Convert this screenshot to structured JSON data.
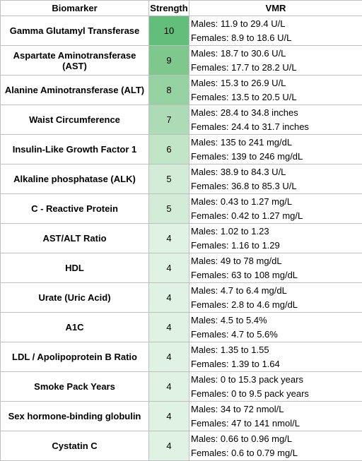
{
  "table": {
    "headers": [
      "Biomarker",
      "Strength",
      "VMR"
    ],
    "rows": [
      {
        "biomarker": "Gamma Glutamyl Transferase",
        "strength": "10",
        "males": "Males: 11.9 to 29.4 U/L",
        "females": "Females: 8.9 to 18.6 U/L",
        "color": "#63be7b"
      },
      {
        "biomarker": "Aspartate Aminotransferase (AST)",
        "strength": "9",
        "males": "Males: 18.7 to 30.6 U/L",
        "females": "Females: 17.7 to 28.2 U/L",
        "color": "#7ec88d"
      },
      {
        "biomarker": "Alanine Aminotransferase (ALT)",
        "strength": "8",
        "males": "Males: 15.3 to 26.9 U/L",
        "females": "Females: 13.5 to 20.5 U/L",
        "color": "#96d2a1"
      },
      {
        "biomarker": "Waist Circumference",
        "strength": "7",
        "males": "Males: 28.4 to 34.8 inches",
        "females": "Females: 24.4 to 31.7 inches",
        "color": "#addbb5"
      },
      {
        "biomarker": "Insulin-Like Growth Factor 1",
        "strength": "6",
        "males": "Males: 135 to 241 mg/dL",
        "females": "Females: 139 to 246 mg/dL",
        "color": "#c2e5c8"
      },
      {
        "biomarker": "Alkaline phosphatase (ALK)",
        "strength": "5",
        "males": "Males: 38.9 to 84.3 U/L",
        "females": "Females: 36.8 to 85.3 U/L",
        "color": "#d3ecd7"
      },
      {
        "biomarker": "C - Reactive Protein",
        "strength": "5",
        "males": "Males: 0.43 to 1.27 mg/L",
        "females": "Females: 0.42 to 1.27 mg/L",
        "color": "#d3ecd7"
      },
      {
        "biomarker": "AST/ALT Ratio",
        "strength": "4",
        "males": "Males: 1.02 to 1.23",
        "females": "Females: 1.16 to 1.29",
        "color": "#e0f2e3"
      },
      {
        "biomarker": "HDL",
        "strength": "4",
        "males": "Males: 49 to 78 mg/dL",
        "females": "Females: 63 to 108 mg/dL",
        "color": "#e0f2e3"
      },
      {
        "biomarker": "Urate (Uric Acid)",
        "strength": "4",
        "males": "Males: 4.7 to 6.4 mg/dL",
        "females": "Females: 2.8 to 4.6 mg/dL",
        "color": "#e0f2e3"
      },
      {
        "biomarker": "A1C",
        "strength": "4",
        "males": "Males: 4.5 to 5.4%",
        "females": "Females: 4.7 to 5.6%",
        "color": "#e0f2e3"
      },
      {
        "biomarker": "LDL / Apolipoprotein B Ratio",
        "strength": "4",
        "males": "Males: 1.35 to 1.55",
        "females": "Females: 1.39 to 1.64",
        "color": "#e0f2e3"
      },
      {
        "biomarker": "Smoke Pack Years",
        "strength": "4",
        "males": "Males: 0 to 15.3 pack years",
        "females": "Females: 0 to 9.5 pack years",
        "color": "#e0f2e3"
      },
      {
        "biomarker": "Sex hormone-binding globulin",
        "strength": "4",
        "males": "Males: 34 to 72 nmol/L",
        "females": "Females: 47 to 141 nmol/L",
        "color": "#e0f2e3"
      },
      {
        "biomarker": "Cystatin C",
        "strength": "4",
        "males": "Males: 0.66 to 0.96 mg/L",
        "females": "Females: 0.6 to 0.79 mg/L",
        "color": "#e0f2e3"
      }
    ]
  }
}
